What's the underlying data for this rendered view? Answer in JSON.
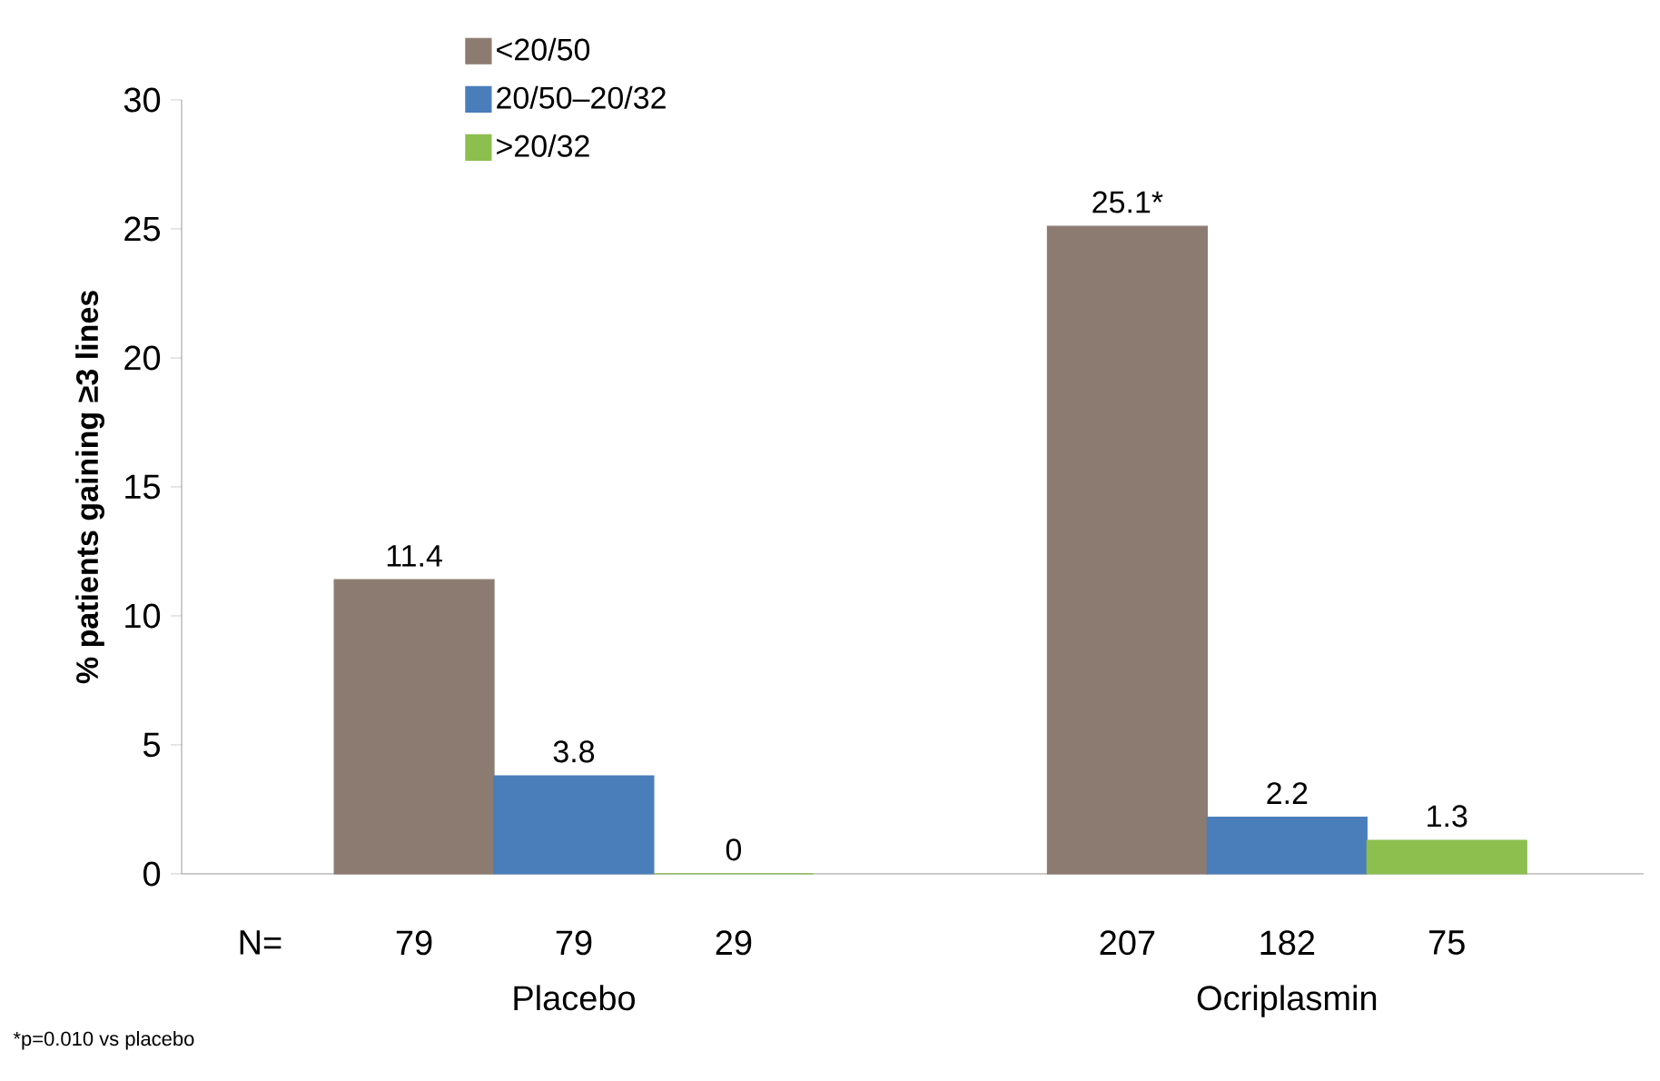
{
  "chart_data": {
    "type": "bar",
    "ylabel": "% patients gaining ≥3 lines",
    "categories": [
      "Placebo",
      "Ocriplasmin"
    ],
    "series": [
      {
        "name": "<20/50",
        "color": "#8c7b70",
        "values": [
          11.4,
          25.1
        ],
        "value_labels": [
          "11.4",
          "25.1*"
        ]
      },
      {
        "name": "20/50–20/32",
        "color": "#4a7ebb",
        "values": [
          3.8,
          2.2
        ],
        "value_labels": [
          "3.8",
          "2.2"
        ]
      },
      {
        "name": ">20/32",
        "color": "#8cbf4e",
        "values": [
          0,
          1.3
        ],
        "value_labels": [
          "0",
          "1.3"
        ]
      }
    ],
    "ylim": [
      0,
      30
    ],
    "yticks": [
      0,
      5,
      10,
      15,
      20,
      25,
      30
    ],
    "grid": false,
    "legend": "top left",
    "annotations": [
      "N=",
      "79",
      "79",
      "29",
      "207",
      "182",
      "75",
      "*p=0.010 vs placebo"
    ]
  }
}
